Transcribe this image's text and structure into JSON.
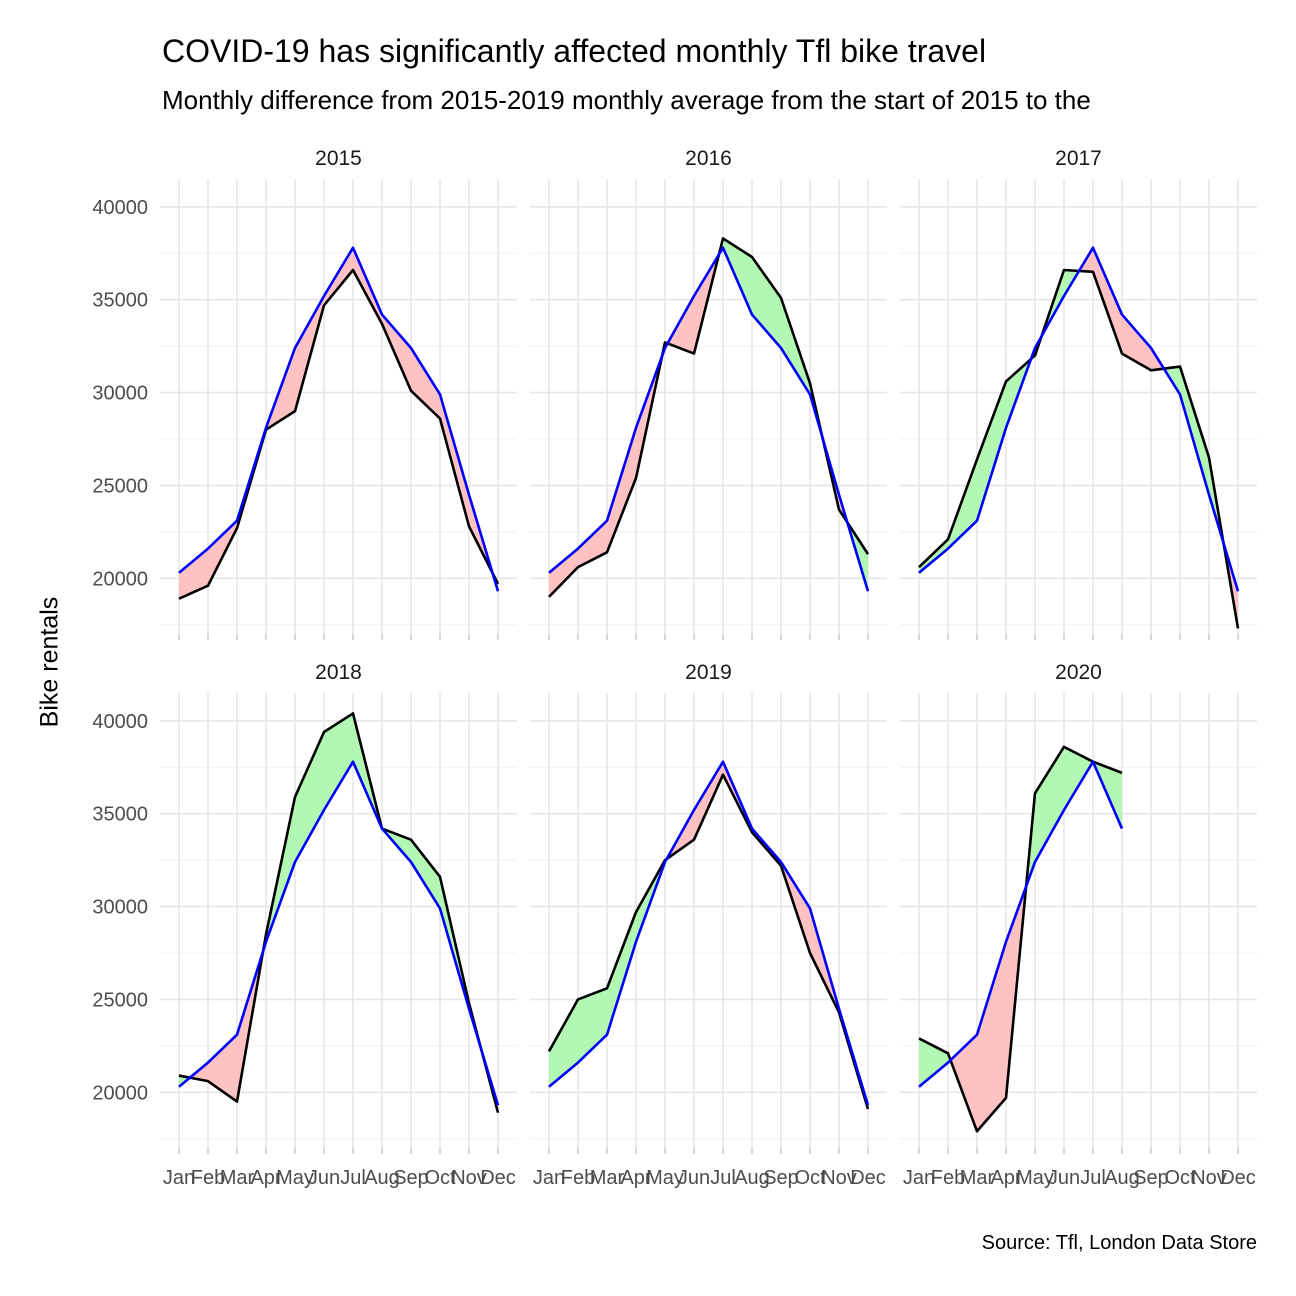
{
  "title": "COVID-19 has significantly affected monthly Tfl bike travel",
  "subtitle": "Monthly difference from 2015-2019 monthly average from the start of 2015 to the",
  "caption": "Source: Tfl, London Data Store",
  "chart_data": {
    "type": "line",
    "facet_by": "year",
    "ylabel": "Bike rentals",
    "ylim": [
      17000,
      41500
    ],
    "yticks": [
      20000,
      25000,
      30000,
      35000,
      40000
    ],
    "months": [
      "Jan",
      "Feb",
      "Mar",
      "Apr",
      "May",
      "Jun",
      "Jul",
      "Aug",
      "Sep",
      "Oct",
      "Nov",
      "Dec"
    ],
    "average_line_color": "#0000ff",
    "actual_line_color": "#000000",
    "above_fill_color": "#b2f7b2",
    "below_fill_color": "#ffc2c2",
    "average": [
      20300,
      21600,
      23100,
      28100,
      32400,
      35200,
      37800,
      34200,
      32400,
      29900,
      24500,
      19300
    ],
    "panels": [
      {
        "year": "2015",
        "actual": [
          18900,
          19600,
          22700,
          28000,
          29000,
          34700,
          36600,
          33700,
          30100,
          28600,
          22800,
          19700
        ]
      },
      {
        "year": "2016",
        "actual": [
          19000,
          20600,
          21400,
          25400,
          32700,
          32100,
          38300,
          37300,
          35100,
          30500,
          23700,
          21300
        ]
      },
      {
        "year": "2017",
        "actual": [
          20600,
          22100,
          26400,
          30600,
          32000,
          36600,
          36500,
          32100,
          31200,
          31400,
          26500,
          17300
        ]
      },
      {
        "year": "2018",
        "actual": [
          20900,
          20600,
          19500,
          28500,
          35900,
          39400,
          40400,
          34200,
          33600,
          31600,
          24800,
          18900
        ]
      },
      {
        "year": "2019",
        "actual": [
          22200,
          25000,
          25600,
          29700,
          32500,
          33600,
          37100,
          34000,
          32200,
          27500,
          24300,
          19100
        ]
      },
      {
        "year": "2020",
        "actual": [
          22900,
          22100,
          17900,
          19700,
          36100,
          38600,
          37800,
          37200,
          null,
          null,
          null,
          null
        ]
      }
    ]
  }
}
